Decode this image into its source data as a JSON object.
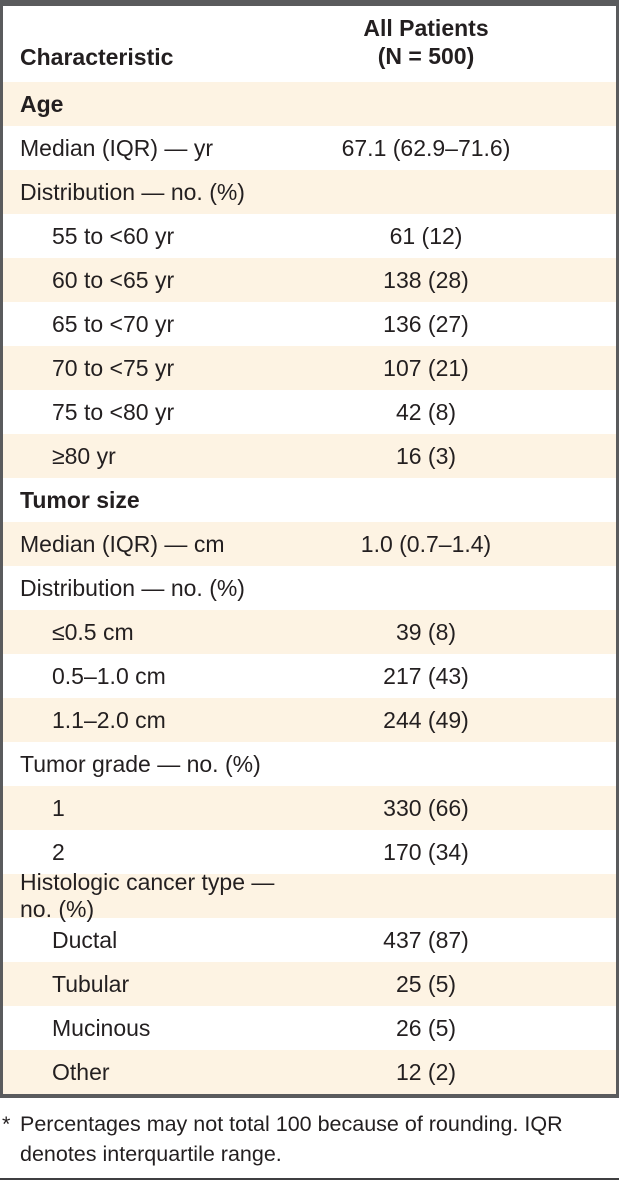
{
  "table": {
    "header": {
      "characteristic_label": "Characteristic",
      "all_patients_line1": "All Patients",
      "all_patients_line2": "(N = 500)"
    },
    "rows": [
      {
        "label": "Age",
        "value": "",
        "bold": true,
        "indent": false
      },
      {
        "label": "Median (IQR) — yr",
        "value": "67.1 (62.9–71.6)",
        "bold": false,
        "indent": false
      },
      {
        "label": "Distribution — no. (%)",
        "value": "",
        "bold": false,
        "indent": false
      },
      {
        "label": "55 to <60 yr",
        "value": "61 (12)",
        "bold": false,
        "indent": true
      },
      {
        "label": "60 to <65 yr",
        "value": "138 (28)",
        "bold": false,
        "indent": true
      },
      {
        "label": "65 to <70 yr",
        "value": "136 (27)",
        "bold": false,
        "indent": true
      },
      {
        "label": "70 to <75 yr",
        "value": "107 (21)",
        "bold": false,
        "indent": true
      },
      {
        "label": "75 to <80 yr",
        "value": "42 (8)",
        "bold": false,
        "indent": true
      },
      {
        "label": "≥80 yr",
        "value": "16 (3)",
        "bold": false,
        "indent": true
      },
      {
        "label": "Tumor size",
        "value": "",
        "bold": true,
        "indent": false
      },
      {
        "label": "Median (IQR) — cm",
        "value": "1.0 (0.7–1.4)",
        "bold": false,
        "indent": false
      },
      {
        "label": "Distribution — no. (%)",
        "value": "",
        "bold": false,
        "indent": false
      },
      {
        "label": "≤0.5 cm",
        "value": "39 (8)",
        "bold": false,
        "indent": true
      },
      {
        "label": "0.5–1.0 cm",
        "value": "217 (43)",
        "bold": false,
        "indent": true
      },
      {
        "label": "1.1–2.0 cm",
        "value": "244 (49)",
        "bold": false,
        "indent": true
      },
      {
        "label": "Tumor grade — no. (%)",
        "value": "",
        "bold": false,
        "indent": false
      },
      {
        "label": "1",
        "value": "330 (66)",
        "bold": false,
        "indent": true
      },
      {
        "label": "2",
        "value": "170 (34)",
        "bold": false,
        "indent": true
      },
      {
        "label": "Histologic cancer type — no. (%)",
        "value": "",
        "bold": false,
        "indent": false
      },
      {
        "label": "Ductal",
        "value": "437 (87)",
        "bold": false,
        "indent": true
      },
      {
        "label": "Tubular",
        "value": "25 (5)",
        "bold": false,
        "indent": true
      },
      {
        "label": "Mucinous",
        "value": "26 (5)",
        "bold": false,
        "indent": true
      },
      {
        "label": "Other",
        "value": "12 (2)",
        "bold": false,
        "indent": true
      }
    ]
  },
  "footnote": {
    "marker": "*",
    "text": "Percentages may not total 100 because of rounding. IQR denotes interquartile range."
  },
  "colors": {
    "row_shade": "#fdf3e3",
    "frame_border": "#5a5b5d",
    "text": "#231f20"
  }
}
